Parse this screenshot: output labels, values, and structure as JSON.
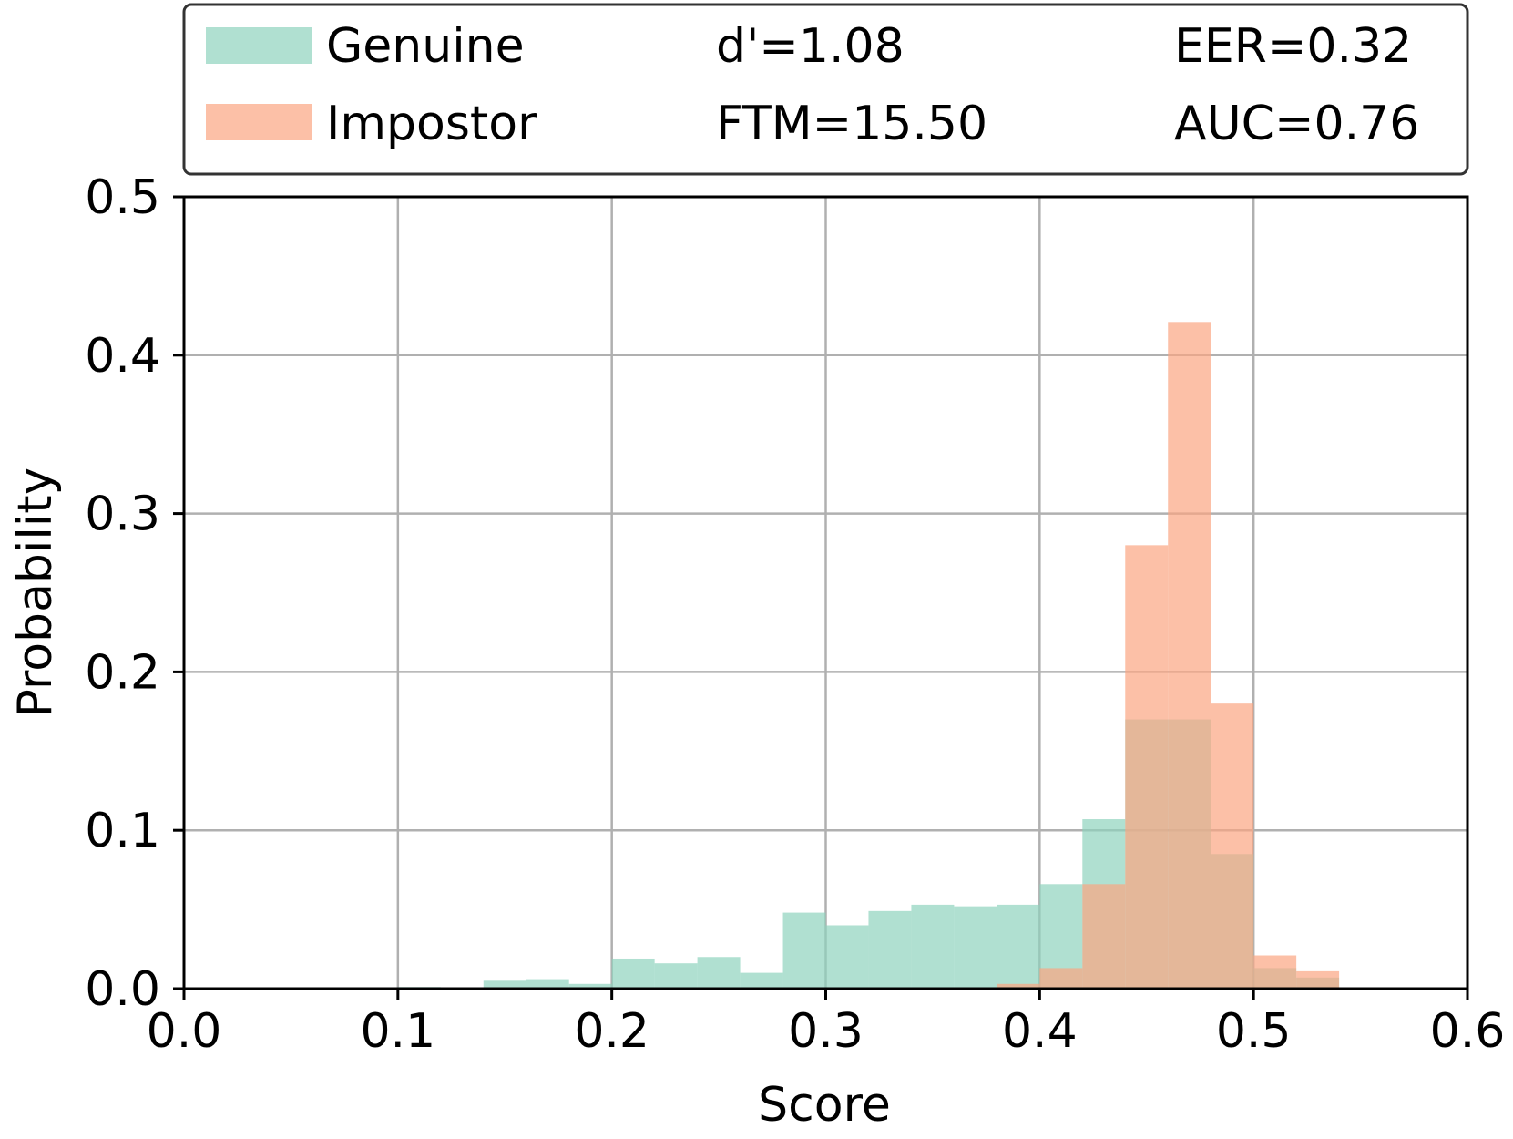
{
  "colors": {
    "genuine": "#8fd3bd",
    "impostor": "#fba582",
    "grid": "#b0b0b0",
    "axis": "#000000"
  },
  "legend": {
    "genuine_label": "Genuine",
    "impostor_label": "Impostor",
    "dprime": "d'=1.08",
    "ftm": "FTM=15.50",
    "eer": "EER=0.32",
    "auc": "AUC=0.76"
  },
  "chart_data": {
    "type": "bar",
    "xlabel": "Score",
    "ylabel": "Probability",
    "xlim": [
      0.0,
      0.6
    ],
    "ylim": [
      0.0,
      0.5
    ],
    "xticks": [
      "0.0",
      "0.1",
      "0.2",
      "0.3",
      "0.4",
      "0.5",
      "0.6"
    ],
    "yticks": [
      "0.0",
      "0.1",
      "0.2",
      "0.3",
      "0.4",
      "0.5"
    ],
    "grid": true,
    "legend_position": "top",
    "bin_width": 0.02,
    "series": [
      {
        "name": "Genuine",
        "bin_starts": [
          0.1,
          0.12,
          0.14,
          0.16,
          0.18,
          0.2,
          0.22,
          0.24,
          0.26,
          0.28,
          0.3,
          0.32,
          0.34,
          0.36,
          0.38,
          0.4,
          0.42,
          0.44,
          0.46,
          0.48,
          0.5,
          0.52
        ],
        "values": [
          0.001,
          0.0,
          0.005,
          0.006,
          0.003,
          0.019,
          0.016,
          0.02,
          0.01,
          0.048,
          0.04,
          0.049,
          0.053,
          0.052,
          0.053,
          0.066,
          0.107,
          0.17,
          0.17,
          0.085,
          0.013,
          0.007
        ]
      },
      {
        "name": "Impostor",
        "bin_starts": [
          0.38,
          0.4,
          0.42,
          0.44,
          0.46,
          0.48,
          0.5,
          0.52
        ],
        "values": [
          0.003,
          0.013,
          0.066,
          0.28,
          0.421,
          0.18,
          0.021,
          0.011
        ]
      }
    ]
  }
}
